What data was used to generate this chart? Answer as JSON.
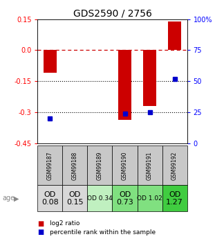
{
  "title": "GDS2590 / 2756",
  "samples": [
    "GSM99187",
    "GSM99188",
    "GSM99189",
    "GSM99190",
    "GSM99191",
    "GSM99192"
  ],
  "log2_ratio": [
    -0.11,
    0.0,
    0.0,
    -0.335,
    -0.27,
    0.14
  ],
  "percentile_rank": [
    20,
    0,
    0,
    24,
    25,
    52
  ],
  "ylim_left": [
    -0.45,
    0.15
  ],
  "ylim_right": [
    0,
    100
  ],
  "yticks_left": [
    0.15,
    0.0,
    -0.15,
    -0.3,
    -0.45
  ],
  "yticks_right": [
    100,
    75,
    50,
    25,
    0
  ],
  "bar_color": "#cc0000",
  "dot_color": "#0000cc",
  "age_labels": [
    "OD\n0.08",
    "OD\n0.15",
    "OD 0.34",
    "OD\n0.73",
    "OD 1.02",
    "OD\n1.27"
  ],
  "age_fontsize": [
    8,
    8,
    6.5,
    8,
    6.5,
    8
  ],
  "age_bg_colors": [
    "#d8d8d8",
    "#d8d8d8",
    "#c0f0c0",
    "#80e080",
    "#80e080",
    "#40cc40"
  ],
  "sample_bg_color": "#c8c8c8",
  "legend_red": "log2 ratio",
  "legend_blue": "percentile rank within the sample",
  "title_fontsize": 10,
  "bar_width": 0.55
}
